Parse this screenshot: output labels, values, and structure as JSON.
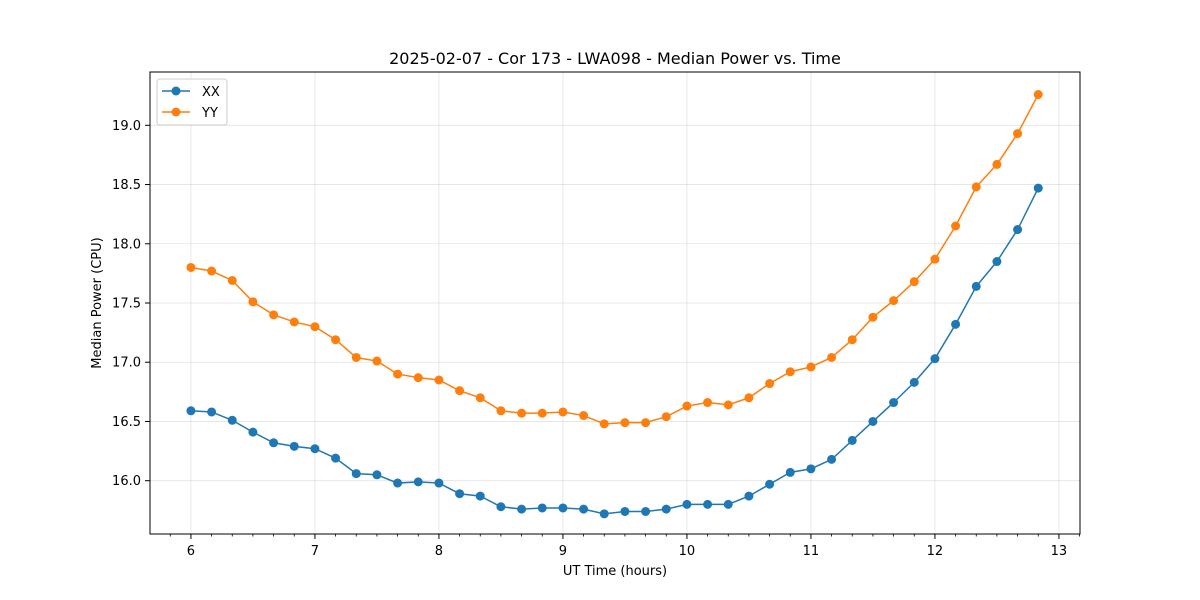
{
  "chart_data": {
    "type": "line",
    "title": "2025-02-07 - Cor 173 - LWA098 - Median Power vs. Time",
    "xlabel": "UT Time (hours)",
    "ylabel": "Median Power (CPU)",
    "xlim": [
      5.67,
      13.17
    ],
    "ylim": [
      15.55,
      19.45
    ],
    "xticks": [
      6,
      7,
      8,
      9,
      10,
      11,
      12,
      13
    ],
    "xtick_labels": [
      "6",
      "7",
      "8",
      "9",
      "10",
      "11",
      "12",
      "13"
    ],
    "yticks": [
      16.0,
      16.5,
      17.0,
      17.5,
      18.0,
      18.5,
      19.0
    ],
    "ytick_labels": [
      "16.0",
      "16.5",
      "17.0",
      "17.5",
      "18.0",
      "18.5",
      "19.0"
    ],
    "grid": true,
    "legend_position": "top-left",
    "x": [
      6.0,
      6.1667,
      6.3333,
      6.5,
      6.6667,
      6.8333,
      7.0,
      7.1667,
      7.3333,
      7.5,
      7.6667,
      7.8333,
      8.0,
      8.1667,
      8.3333,
      8.5,
      8.6667,
      8.8333,
      9.0,
      9.1667,
      9.3333,
      9.5,
      9.6667,
      9.8333,
      10.0,
      10.1667,
      10.3333,
      10.5,
      10.6667,
      10.8333,
      11.0,
      11.1667,
      11.3333,
      11.5,
      11.6667,
      11.8333,
      12.0,
      12.1667,
      12.3333,
      12.5,
      12.6667,
      12.8333
    ],
    "series": [
      {
        "name": "XX",
        "color": "#1f77b4",
        "values": [
          16.59,
          16.58,
          16.51,
          16.41,
          16.32,
          16.29,
          16.27,
          16.19,
          16.06,
          16.05,
          15.98,
          15.99,
          15.98,
          15.89,
          15.87,
          15.78,
          15.76,
          15.77,
          15.77,
          15.76,
          15.72,
          15.74,
          15.74,
          15.76,
          15.8,
          15.8,
          15.8,
          15.87,
          15.97,
          16.07,
          16.1,
          16.18,
          16.34,
          16.5,
          16.66,
          16.83,
          17.03,
          17.32,
          17.64,
          17.85,
          18.12,
          18.47
        ]
      },
      {
        "name": "YY",
        "color": "#ff7f0e",
        "values": [
          17.8,
          17.77,
          17.69,
          17.51,
          17.4,
          17.34,
          17.3,
          17.19,
          17.04,
          17.01,
          16.9,
          16.87,
          16.85,
          16.76,
          16.7,
          16.59,
          16.57,
          16.57,
          16.58,
          16.55,
          16.48,
          16.49,
          16.49,
          16.54,
          16.63,
          16.66,
          16.64,
          16.7,
          16.82,
          16.92,
          16.96,
          17.04,
          17.19,
          17.38,
          17.52,
          17.68,
          17.87,
          18.15,
          18.48,
          18.67,
          18.93,
          19.26
        ]
      }
    ]
  }
}
